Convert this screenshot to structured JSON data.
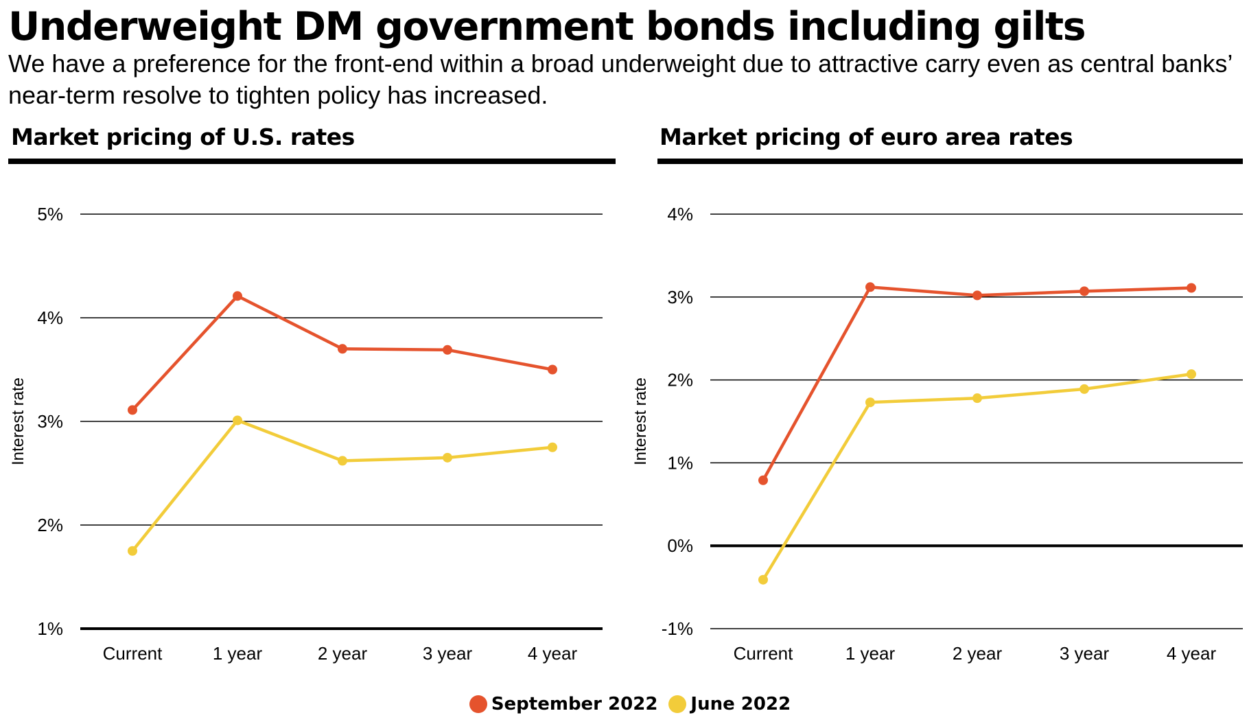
{
  "headline": "Underweight DM government bonds including gilts",
  "subhead": "We have a preference for the front-end within a broad underweight due to attractive carry even as central banks’ near-term resolve to tighten policy has increased.",
  "colors": {
    "september": "#E5532D",
    "june": "#F2CC3A",
    "gridline": "#000000"
  },
  "legend": [
    {
      "label": "September 2022",
      "color": "#E5532D"
    },
    {
      "label": "June 2022",
      "color": "#F2CC3A"
    }
  ],
  "chart_data": [
    {
      "type": "line",
      "title": "Market pricing of U.S. rates",
      "xlabel": "",
      "ylabel": "Interest rate",
      "categories": [
        "Current",
        "1 year",
        "2 year",
        "3 year",
        "4 year"
      ],
      "ylim": [
        1,
        5
      ],
      "yticks": [
        1,
        2,
        3,
        4,
        5
      ],
      "ytick_labels": [
        "1%",
        "2%",
        "3%",
        "4%",
        "5%"
      ],
      "emphasized_gridline": 1,
      "grid": true,
      "legend_position": "bottom-center",
      "series": [
        {
          "name": "September 2022",
          "color": "#E5532D",
          "values": [
            3.11,
            4.21,
            3.7,
            3.69,
            3.5
          ]
        },
        {
          "name": "June 2022",
          "color": "#F2CC3A",
          "values": [
            1.75,
            3.01,
            2.62,
            2.65,
            2.75
          ]
        }
      ]
    },
    {
      "type": "line",
      "title": "Market pricing of euro area rates",
      "xlabel": "",
      "ylabel": "Interest rate",
      "categories": [
        "Current",
        "1 year",
        "2 year",
        "3 year",
        "4 year"
      ],
      "ylim": [
        -1,
        4
      ],
      "yticks": [
        -1,
        0,
        1,
        2,
        3,
        4
      ],
      "ytick_labels": [
        "-1%",
        "0%",
        "1%",
        "2%",
        "3%",
        "4%"
      ],
      "emphasized_gridline": 0,
      "grid": true,
      "legend_position": "bottom-center",
      "series": [
        {
          "name": "September 2022",
          "color": "#E5532D",
          "values": [
            0.79,
            3.12,
            3.02,
            3.07,
            3.11
          ]
        },
        {
          "name": "June 2022",
          "color": "#F2CC3A",
          "values": [
            -0.41,
            1.73,
            1.78,
            1.89,
            2.07
          ]
        }
      ]
    }
  ]
}
